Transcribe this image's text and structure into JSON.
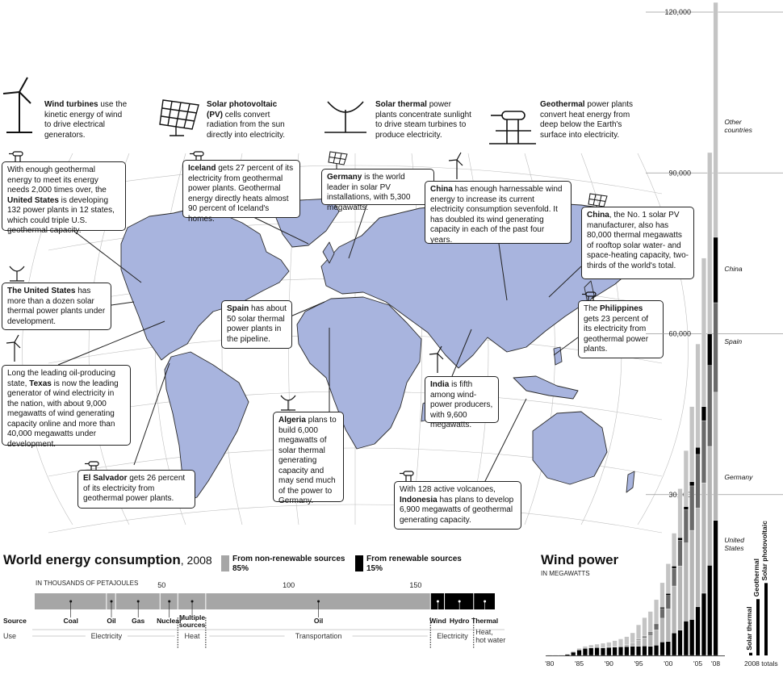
{
  "technologies": {
    "wind": {
      "name": "Wind turbines",
      "text": " use the kinetic energy of wind to drive electrical generators.",
      "icon": "wind-turbine-icon"
    },
    "pv": {
      "name": "Solar photovoltaic (PV)",
      "text": " cells convert radiation from the sun directly into electricity.",
      "icon": "solar-panel-icon"
    },
    "thermal": {
      "name": "Solar thermal",
      "text": " power plants concentrate sunlight to drive steam turbines to produce electricity.",
      "icon": "solar-dish-icon"
    },
    "geo": {
      "name": "Geothermal",
      "text": " power plants convert heat energy from deep below the Earth's surface into electricity.",
      "icon": "geothermal-pipe-icon"
    }
  },
  "callouts": {
    "us_geo": {
      "pre": "With enough geothermal energy to meet its energy needs 2,000 times over, the ",
      "bold": "United States",
      "post": " is developing 132 power plants in 12 states, which could triple U.S. geothermal capacity."
    },
    "iceland": {
      "bold": "Iceland",
      "post": " gets 27 percent of its electricity from geothermal power plants. Geothermal energy directly heats almost 90 percent of Iceland's homes."
    },
    "germany": {
      "bold": "Germany",
      "post": " is the world leader in solar PV installations, with 5,300 megawatts."
    },
    "china_wind": {
      "bold": "China",
      "post": " has enough harnessable wind energy to increase its current electricity consumption sevenfold. It has doubled its wind generating capacity in each of the past four years."
    },
    "china_pv": {
      "bold": "China",
      "post": ", the No. 1 solar PV manufacturer, also has 80,000 thermal megawatts of rooftop solar water- and space-heating capacity, two-thirds of the world's total."
    },
    "us_thermal": {
      "bold": "The United States",
      "post": " has more than a dozen solar thermal power plants under development."
    },
    "spain": {
      "bold": "Spain",
      "post": " has about 50 solar thermal power plants in the pipeline."
    },
    "philippines": {
      "pre": "The ",
      "bold": "Philippines",
      "post": " gets 23 percent of its electricity from geothermal power plants."
    },
    "texas": {
      "pre": "Long the leading oil-producing state, ",
      "bold": "Texas",
      "post": " is now the leading generator of wind electricity in the nation, with about 9,000 megawatts of wind generating capacity online and more than 40,000 megawatts under development."
    },
    "india": {
      "bold": "India",
      "post": " is fifth among wind-power producers, with 9,600 megawatts."
    },
    "algeria": {
      "bold": "Algeria",
      "post": " plans to build 6,000 megawatts of solar thermal generating capacity and may send much of the power to Germany."
    },
    "elsalvador": {
      "bold": "El Salvador",
      "post": " gets 26 percent of its electricity from geothermal power plants."
    },
    "indonesia": {
      "pre": "With 128 active volcanoes, ",
      "bold": "Indonesia",
      "post": " has plans to develop 6,900 megawatts of geothermal generating capacity."
    }
  },
  "colors": {
    "land": "#a8b4de",
    "nonrenew": "#a6a6a6",
    "renew": "#000000",
    "ocean_grid": "#bfbfbf"
  },
  "chart_data": [
    {
      "type": "bar",
      "title": "World energy consumption",
      "title_year": ", 2008",
      "unit_label": "IN THOUSANDS OF PETAJOULES",
      "ticks": [
        50,
        100,
        150
      ],
      "xlim": [
        0,
        185
      ],
      "legend": {
        "nonrenew": "From non-renewable sources",
        "nonrenew_pct": "85%",
        "renew": "From renewable sources",
        "renew_pct": "15%"
      },
      "row_labels": {
        "source": "Source",
        "use": "Use"
      },
      "segments": [
        {
          "name": "Coal",
          "value": 28.4,
          "renewable": false
        },
        {
          "name": "Oil",
          "value": 3.6,
          "renewable": false
        },
        {
          "name": "Gas",
          "value": 17.5,
          "renewable": false
        },
        {
          "name": "Nuclear",
          "value": 7.0,
          "renewable": false
        },
        {
          "name": "Multiple sources",
          "value": 11.0,
          "renewable": false
        },
        {
          "name": "Oil",
          "value": 88.5,
          "renewable": false
        },
        {
          "name": "Wind",
          "value": 5.5,
          "renewable": true
        },
        {
          "name": "Hydro",
          "value": 11.5,
          "renewable": true
        },
        {
          "name": "Thermal",
          "value": 8.5,
          "renewable": true
        }
      ],
      "uses": [
        {
          "name": "Electricity",
          "start": 0,
          "end": 56.5
        },
        {
          "name": "Heat",
          "start": 56.5,
          "end": 67.5
        },
        {
          "name": "Transportation",
          "start": 67.5,
          "end": 156
        },
        {
          "name": "Electricity",
          "start": 156,
          "end": 173
        },
        {
          "name": "Heat, hot water",
          "start": 173,
          "end": 181.5
        }
      ]
    },
    {
      "type": "bar",
      "title": "Wind power",
      "unit_label": "IN MEGAWATTS",
      "ylim": [
        0,
        120000
      ],
      "yticks": [
        "30,000",
        "60,000",
        "90,000",
        "120,000"
      ],
      "categories": [
        "'80",
        "'81",
        "'82",
        "'83",
        "'84",
        "'85",
        "'86",
        "'87",
        "'88",
        "'89",
        "'90",
        "'91",
        "'92",
        "'93",
        "'94",
        "'95",
        "'96",
        "'97",
        "'98",
        "'99",
        "'00",
        "'01",
        "'02",
        "'03",
        "'04",
        "'05",
        "'06",
        "'07",
        "'08"
      ],
      "xtick_labels": [
        "'80",
        "'85",
        "'90",
        "'95",
        "'00",
        "'05",
        "'08"
      ],
      "series_labels": [
        "United States",
        "Germany",
        "Spain",
        "China",
        "Other countries"
      ],
      "series": [
        {
          "name": "United States",
          "values": [
            10,
            20,
            50,
            200,
            600,
            1000,
            1300,
            1400,
            1450,
            1450,
            1500,
            1550,
            1600,
            1650,
            1700,
            1700,
            1750,
            1700,
            1900,
            2500,
            2600,
            4200,
            4700,
            6400,
            6700,
            9100,
            11600,
            16800,
            25200
          ]
        },
        {
          "name": "Germany",
          "values": [
            0,
            0,
            0,
            0,
            0,
            0,
            0,
            0,
            0,
            20,
            60,
            110,
            180,
            330,
            640,
            1140,
            1550,
            2080,
            2880,
            4440,
            6100,
            8750,
            12000,
            14600,
            16630,
            18400,
            20600,
            22200,
            23900
          ]
        },
        {
          "name": "Spain",
          "values": [
            0,
            0,
            0,
            0,
            0,
            0,
            0,
            0,
            0,
            0,
            0,
            0,
            0,
            0,
            0,
            150,
            250,
            430,
            830,
            1800,
            2500,
            3300,
            4800,
            6200,
            8300,
            10000,
            11600,
            15100,
            16700
          ]
        },
        {
          "name": "China",
          "values": [
            0,
            0,
            0,
            0,
            0,
            0,
            0,
            0,
            0,
            0,
            0,
            0,
            0,
            0,
            0,
            40,
            80,
            150,
            220,
            260,
            350,
            400,
            470,
            570,
            760,
            1300,
            2600,
            5900,
            12200
          ]
        },
        {
          "name": "Other countries",
          "values": [
            0,
            10,
            40,
            100,
            200,
            300,
            400,
            550,
            650,
            800,
            900,
            1100,
            1300,
            1520,
            1870,
            2680,
            3420,
            3840,
            4570,
            4560,
            5550,
            6150,
            9130,
            10440,
            14010,
            19300,
            27700,
            33800,
            43800
          ]
        }
      ],
      "totals_2008": [
        {
          "name": "Solar thermal",
          "value": 500
        },
        {
          "name": "Geothermal",
          "value": 10500
        },
        {
          "name": "Solar photovoltaic",
          "value": 13500
        }
      ],
      "totals_label": "2008 totals"
    }
  ]
}
